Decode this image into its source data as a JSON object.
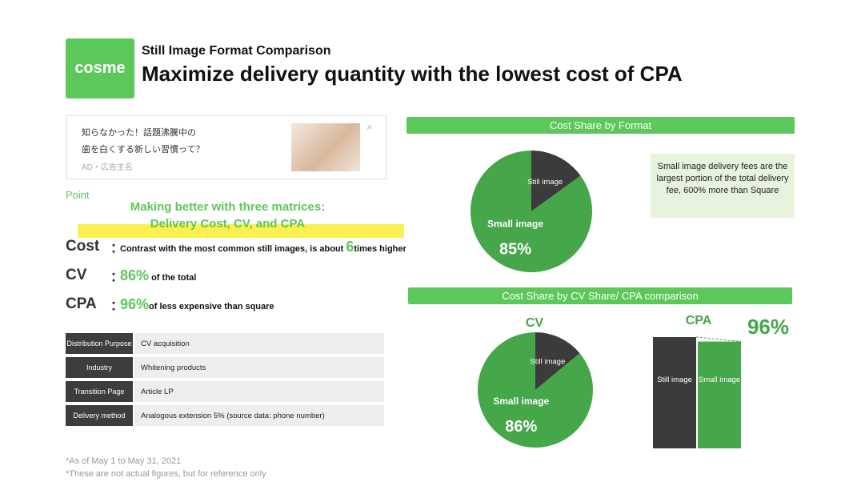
{
  "header": {
    "logo": "cosme",
    "subtitle": "Still Image Format Comparison",
    "title": "Maximize delivery quantity with the lowest cost of CPA"
  },
  "ad": {
    "line1": "知らなかった！話題沸騰中の",
    "line2": "歯を白くする新しい習慣って？",
    "sponsor": "AD・広告主名"
  },
  "point": {
    "label": "Point",
    "heading_line1": "Making better with three matrices:",
    "heading_line2": "Delivery Cost, CV, and CPA"
  },
  "metrics": [
    {
      "name": "Cost",
      "colon": "：",
      "before": "Contrast with the most common still images, is about ",
      "highlight": "6",
      "after": "times higher"
    },
    {
      "name": "CV",
      "colon": "：",
      "before": "",
      "highlight": "86%",
      "after": " of the total"
    },
    {
      "name": "CPA",
      "colon": "：",
      "before": "",
      "highlight": "96%",
      "after": "of less expensive than square"
    }
  ],
  "table": {
    "rows": [
      [
        "Distribution Purpose",
        "CV acquisition"
      ],
      [
        "Industry",
        "Whitening products"
      ],
      [
        "Transition Page",
        "Article LP"
      ],
      [
        "Delivery method",
        "Analogous extension 5% (source data: phone number)"
      ]
    ]
  },
  "notes": [
    "*As of May 1 to May 31, 2021",
    "*These are not actual figures, but for reference only"
  ],
  "section_title": "Cost Share by CV Share/ CPA comparison",
  "chart_data": [
    {
      "type": "pie",
      "title": "Cost Share by Format",
      "categories": [
        "Small image",
        "Still image"
      ],
      "values": [
        85,
        15
      ],
      "value_labels": [
        "85%",
        null
      ],
      "colors": [
        "#46a64a",
        "#3b3b3b"
      ],
      "annotation": "Small image delivery fees are the largest portion of the total delivery fee, 600% more than Square"
    },
    {
      "type": "pie",
      "title": "CV",
      "categories": [
        "Small image",
        "Still image"
      ],
      "values": [
        86,
        14
      ],
      "value_labels": [
        "86%",
        null
      ],
      "colors": [
        "#46a64a",
        "#3b3b3b"
      ]
    },
    {
      "type": "bar",
      "title": "CPA",
      "categories": [
        "Still image",
        "Small image"
      ],
      "values": [
        100,
        96
      ],
      "ylim": [
        0,
        100
      ],
      "colors": [
        "#3b3b3b",
        "#46a64a"
      ],
      "annotation": "96%"
    }
  ]
}
